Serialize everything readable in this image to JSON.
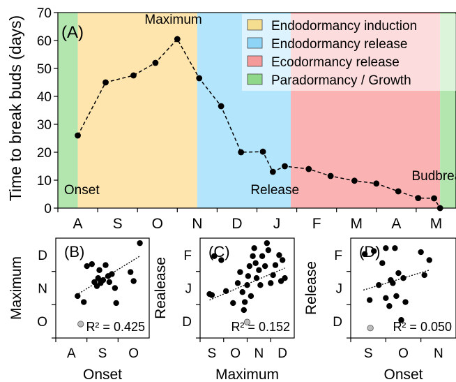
{
  "chart_data": [
    {
      "panel": "(A)",
      "type": "line",
      "ylabel": "Time to break buds (days)",
      "ylim": [
        0,
        70
      ],
      "yticks": [
        "0",
        "10",
        "20",
        "30",
        "40",
        "50",
        "60",
        "70"
      ],
      "month_labels": [
        "A",
        "S",
        "O",
        "N",
        "D",
        "J",
        "F",
        "M",
        "A",
        "M"
      ],
      "phases": [
        {
          "name": "Paradormancy / Growth",
          "color": "#b2e6ae",
          "start": 0.0,
          "end": 0.5
        },
        {
          "name": "Endodormancy induction",
          "color": "#fde5ad",
          "start": 0.5,
          "end": 3.5
        },
        {
          "name": "Endodormancy release",
          "color": "#b3e6fc",
          "start": 3.5,
          "end": 5.85
        },
        {
          "name": "Ecodormancy release",
          "color": "#fbb2b3",
          "start": 5.85,
          "end": 9.6
        },
        {
          "name": "Paradormancy / Growth",
          "color": "#b2e6ae",
          "start": 9.6,
          "end": 10.0
        }
      ],
      "legend": [
        {
          "label": "Endodormancy induction",
          "color": "#f6de90"
        },
        {
          "label": "Endodormancy release",
          "color": "#8ed4f6"
        },
        {
          "label": "Ecodormancy release",
          "color": "#f49a9b"
        },
        {
          "label": "Paradormancy / Growth",
          "color": "#8fd88a"
        }
      ],
      "annotations": [
        {
          "text": "Onset",
          "x": 0.6,
          "y": 5
        },
        {
          "text": "Maximum",
          "x": 2.9,
          "y": 66
        },
        {
          "text": "Release",
          "x": 5.45,
          "y": 5
        },
        {
          "text": "Budbreak",
          "x": 9.6,
          "y": 10
        }
      ],
      "x": [
        0.5,
        1.2,
        1.9,
        2.45,
        3.0,
        3.55,
        4.1,
        4.6,
        5.15,
        5.6,
        5.85,
        6.2,
        6.8,
        7.4,
        8.0,
        8.55,
        9.05,
        9.5,
        10.0,
        10.5
      ],
      "y": [
        26,
        45,
        47.5,
        52,
        60.5,
        46.5,
        36.5,
        20,
        20.2,
        13,
        15,
        14,
        11.5,
        9.8,
        8.8,
        6,
        3.6,
        3.5,
        0,
        0
      ],
      "x_months": [
        0.5,
        1.2,
        1.9,
        2.45,
        3.0,
        3.55,
        4.1,
        4.6,
        5.15,
        5.6,
        5.85,
        6.25,
        6.85,
        7.45,
        8.05,
        8.6,
        9.05,
        9.45,
        9.85,
        9.55
      ]
    },
    {
      "panel": "(B)",
      "type": "scatter",
      "xlabel": "Onset",
      "ylabel": "Maximum",
      "xticks": [
        "A",
        "S",
        "O"
      ],
      "yticks": [
        "O",
        "N",
        "D"
      ],
      "r2": "R² = 0.425",
      "points": [
        [
          0.35,
          0.42
        ],
        [
          0.45,
          0.36
        ],
        [
          0.5,
          0.72
        ],
        [
          0.62,
          0.56
        ],
        [
          0.66,
          0.52
        ],
        [
          0.68,
          0.6
        ],
        [
          0.72,
          0.55
        ],
        [
          0.76,
          0.58
        ],
        [
          0.8,
          0.73
        ],
        [
          0.84,
          0.62
        ],
        [
          0.9,
          0.64
        ],
        [
          0.95,
          0.5
        ],
        [
          0.97,
          0.35
        ],
        [
          1.2,
          0.66
        ],
        [
          1.25,
          0.57
        ],
        [
          1.35,
          0.95
        ],
        [
          0.58,
          0.74
        ],
        [
          0.7,
          0.68
        ],
        [
          0.86,
          0.56
        ]
      ],
      "outlier": [
        0.4,
        0.14
      ],
      "trend": [
        [
          0.33,
          0.43
        ],
        [
          1.35,
          0.82
        ]
      ]
    },
    {
      "panel": "(C)",
      "type": "scatter",
      "xlabel": "Maximum",
      "ylabel": "Realease",
      "xticks": [
        "S",
        "O",
        "N",
        "D"
      ],
      "yticks": [
        "D",
        "J",
        "F"
      ],
      "r2": "R² = 0.152",
      "points": [
        [
          0.2,
          0.44
        ],
        [
          0.25,
          0.43
        ],
        [
          0.3,
          0.82
        ],
        [
          0.45,
          0.78
        ],
        [
          0.55,
          0.47
        ],
        [
          0.7,
          0.35
        ],
        [
          0.8,
          0.55
        ],
        [
          0.85,
          0.66
        ],
        [
          0.9,
          0.46
        ],
        [
          0.93,
          0.28
        ],
        [
          0.95,
          0.36
        ],
        [
          1.0,
          0.53
        ],
        [
          1.02,
          0.62
        ],
        [
          1.05,
          0.72
        ],
        [
          1.08,
          0.42
        ],
        [
          1.12,
          0.82
        ],
        [
          1.15,
          0.9
        ],
        [
          1.18,
          0.75
        ],
        [
          1.2,
          0.6
        ],
        [
          1.25,
          0.68
        ],
        [
          1.28,
          0.53
        ],
        [
          1.32,
          0.82
        ],
        [
          1.38,
          0.72
        ],
        [
          1.42,
          0.95
        ],
        [
          1.45,
          0.88
        ],
        [
          1.5,
          0.55
        ],
        [
          1.55,
          0.63
        ],
        [
          1.6,
          0.73
        ],
        [
          1.68,
          0.83
        ],
        [
          1.72,
          0.57
        ],
        [
          1.75,
          0.78
        ],
        [
          1.8,
          0.6
        ]
      ],
      "outlier": [
        1.0,
        0.16
      ],
      "trend": [
        [
          0.2,
          0.38
        ],
        [
          1.8,
          0.7
        ]
      ]
    },
    {
      "panel": "(D)",
      "type": "scatter",
      "xlabel": "Onset",
      "ylabel": "Release",
      "xticks": [
        "S",
        "O",
        "N"
      ],
      "yticks": [
        "D",
        "J",
        "F"
      ],
      "r2": "R² = 0.050",
      "points": [
        [
          0.2,
          0.84
        ],
        [
          0.27,
          0.38
        ],
        [
          0.33,
          0.87
        ],
        [
          0.4,
          0.53
        ],
        [
          0.45,
          0.75
        ],
        [
          0.5,
          0.9
        ],
        [
          0.5,
          0.4
        ],
        [
          0.55,
          0.32
        ],
        [
          0.57,
          0.58
        ],
        [
          0.6,
          0.55
        ],
        [
          0.63,
          0.9
        ],
        [
          0.65,
          0.42
        ],
        [
          0.68,
          0.65
        ],
        [
          0.72,
          0.18
        ],
        [
          0.75,
          0.6
        ],
        [
          0.78,
          0.36
        ],
        [
          1.0,
          0.86
        ],
        [
          1.05,
          0.63
        ],
        [
          1.12,
          0.78
        ]
      ],
      "outlier": [
        0.28,
        0.1
      ],
      "trend": [
        [
          0.18,
          0.48
        ],
        [
          1.12,
          0.68
        ]
      ]
    }
  ]
}
